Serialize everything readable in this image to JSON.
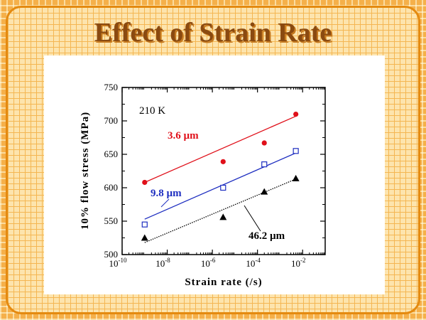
{
  "slide": {
    "title": "Effect of Strain Rate"
  },
  "chart_data": {
    "type": "scatter",
    "annotation": "210 K",
    "xlabel": "Strain rate (/s)",
    "ylabel": "10% flow stress (MPa)",
    "xscale": "log",
    "xlim": [
      1e-10,
      0.1
    ],
    "ylim": [
      500,
      750
    ],
    "x_ticks": [
      {
        "base": "10",
        "exp": "-10",
        "value": -10
      },
      {
        "base": "10",
        "exp": "-8",
        "value": -8
      },
      {
        "base": "10",
        "exp": "-6",
        "value": -6
      },
      {
        "base": "10",
        "exp": "-4",
        "value": -4
      },
      {
        "base": "10",
        "exp": "-2",
        "value": -2
      }
    ],
    "y_ticks": [
      "500",
      "550",
      "600",
      "650",
      "700",
      "750"
    ],
    "series": [
      {
        "name": "3.6 µm",
        "color": "#e0101a",
        "marker": "circle-filled",
        "label_color": "#e0101a",
        "x": [
          1e-09,
          3e-06,
          0.0002,
          0.005
        ],
        "y": [
          608,
          639,
          667,
          710
        ],
        "fit": {
          "x": [
            1e-09,
            0.005
          ],
          "y": [
            608,
            707
          ],
          "style": "solid"
        }
      },
      {
        "name": "9.8 µm",
        "color": "#1e2ec0",
        "marker": "square-open",
        "label_color": "#1e2ec0",
        "x": [
          1e-09,
          3e-06,
          0.0002,
          0.005
        ],
        "y": [
          545,
          600,
          635,
          655
        ],
        "fit": {
          "x": [
            1e-09,
            0.005
          ],
          "y": [
            553,
            652
          ],
          "style": "solid"
        }
      },
      {
        "name": "46.2 µm",
        "color": "#000000",
        "marker": "triangle-filled",
        "label_color": "#000000",
        "x": [
          1e-09,
          3e-06,
          0.0002,
          0.005
        ],
        "y": [
          525,
          556,
          594,
          614
        ],
        "fit": {
          "x": [
            1e-09,
            0.005
          ],
          "y": [
            518,
            613
          ],
          "style": "dotted"
        }
      }
    ]
  }
}
